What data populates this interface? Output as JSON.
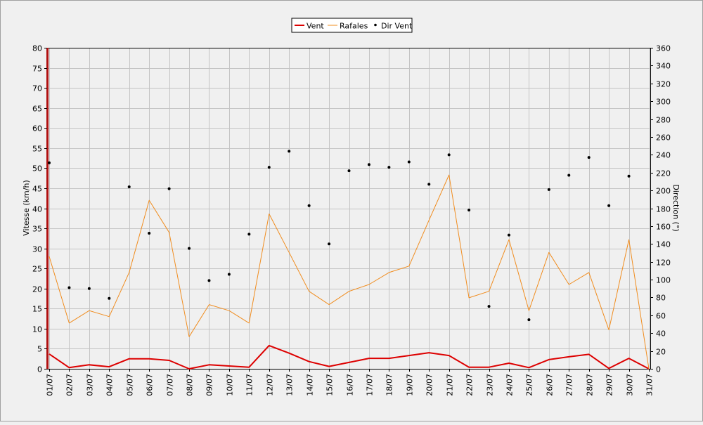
{
  "chart_data": {
    "type": "line",
    "title": "",
    "categories": [
      "01/07",
      "02/07",
      "03/07",
      "04/07",
      "05/07",
      "06/07",
      "07/07",
      "08/07",
      "09/07",
      "10/07",
      "11/07",
      "12/07",
      "13/07",
      "14/07",
      "15/07",
      "16/07",
      "17/07",
      "18/07",
      "19/07",
      "20/07",
      "21/07",
      "22/07",
      "23/07",
      "24/07",
      "25/07",
      "26/07",
      "27/07",
      "28/07",
      "29/07",
      "30/07",
      "31/07"
    ],
    "ylabel": "Vitesse (km/h)",
    "y2label": "Direction (°)",
    "ylim": [
      0,
      80
    ],
    "yticks": [
      0,
      5,
      10,
      15,
      20,
      25,
      30,
      35,
      40,
      45,
      50,
      55,
      60,
      65,
      70,
      75,
      80
    ],
    "y2lim": [
      0,
      360
    ],
    "y2ticks": [
      0,
      20,
      40,
      60,
      80,
      100,
      120,
      140,
      160,
      180,
      200,
      220,
      240,
      260,
      280,
      300,
      320,
      340,
      360
    ],
    "grid": true,
    "legend_position": "top-center",
    "series": [
      {
        "name": "Vent",
        "type": "line",
        "axis": "left",
        "color": "#dd0000",
        "values": [
          3.7,
          0.3,
          1.0,
          0.5,
          2.5,
          2.5,
          2.1,
          0.0,
          1.0,
          0.7,
          0.4,
          5.8,
          3.9,
          1.8,
          0.6,
          1.6,
          2.6,
          2.6,
          3.3,
          4.0,
          3.3,
          0.4,
          0.4,
          1.4,
          0.3,
          2.3,
          3.0,
          3.6,
          0.1,
          2.6,
          0.0
        ]
      },
      {
        "name": "Rafales",
        "type": "line",
        "axis": "left",
        "color": "#f08c1e",
        "values": [
          28,
          11.4,
          14.5,
          13,
          24,
          42,
          34,
          8,
          16,
          14.5,
          11.4,
          38.6,
          29,
          19.3,
          16,
          19.3,
          21,
          24,
          25.6,
          37,
          48.3,
          17.7,
          19.3,
          32.2,
          14.5,
          29,
          21,
          24,
          9.7,
          32.2,
          0
        ]
      },
      {
        "name": "Dir Vent",
        "type": "scatter",
        "axis": "right",
        "color": "#000000",
        "values": [
          231,
          91,
          90,
          79,
          204,
          152,
          202,
          135,
          99,
          106,
          151,
          226,
          244,
          183,
          140,
          222,
          229,
          226,
          232,
          207,
          240,
          178,
          70,
          150,
          55,
          201,
          217,
          237,
          183,
          216,
          null
        ]
      }
    ]
  }
}
